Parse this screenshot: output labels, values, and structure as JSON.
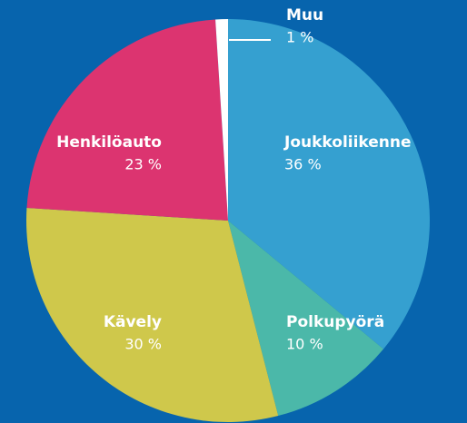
{
  "chart_data": {
    "type": "pie",
    "categories": [
      "Joukkoliikenne",
      "Polkupyörä",
      "Kävely",
      "Henkilöauto",
      "Muu"
    ],
    "values": [
      36,
      10,
      30,
      23,
      1
    ],
    "value_labels": [
      "36 %",
      "10 %",
      "30 %",
      "23 %",
      "1 %"
    ],
    "colors": [
      "#35a0d0",
      "#4bb8a9",
      "#cfc84b",
      "#dc3470",
      "#ffffff"
    ]
  }
}
